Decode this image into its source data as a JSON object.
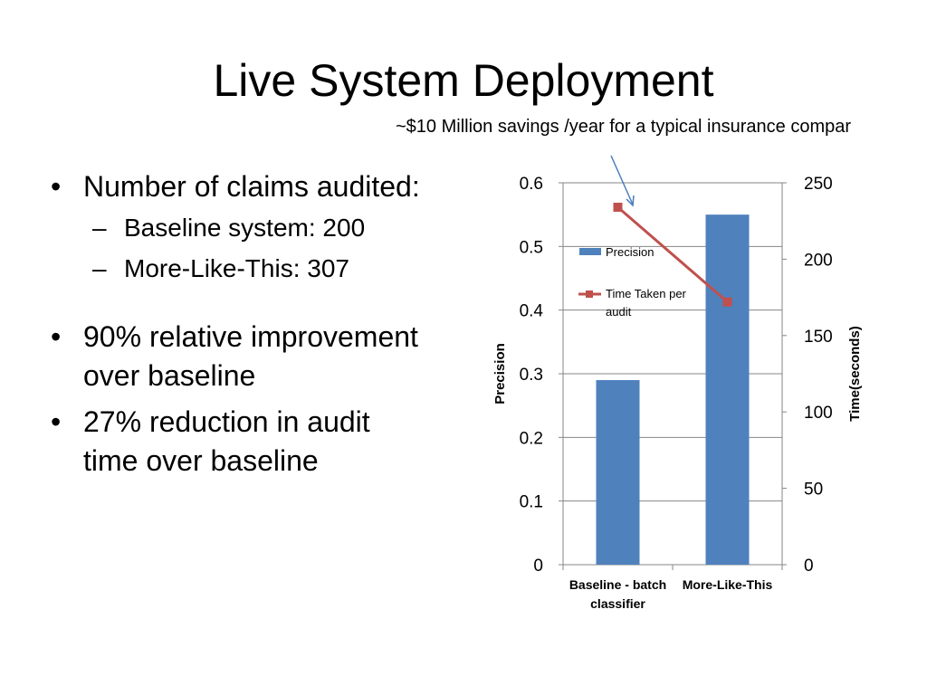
{
  "slide": {
    "title": "Live System Deployment",
    "callout": "~$10 Million savings /year for a typical insurance compar"
  },
  "bullets": {
    "b1": "Number of claims audited:",
    "b1_sub1": "Baseline system: 200",
    "b1_sub2": "More-Like-This: 307",
    "b2": "90% relative improvement over baseline",
    "b3": "27% reduction in audit time over baseline"
  },
  "colors": {
    "bar": "#4f81bd",
    "line": "#c0504d",
    "grid": "#868686",
    "arrow": "#4a7ebb"
  },
  "chart_data": {
    "type": "bar",
    "categories": [
      [
        "Baseline - batch",
        "classifier"
      ],
      [
        "More-Like-This"
      ]
    ],
    "series": [
      {
        "name": "Precision",
        "type": "bar",
        "axis": "left",
        "values": [
          0.29,
          0.55
        ]
      },
      {
        "name": "Time Taken per audit",
        "type": "line",
        "axis": "right",
        "marker": "square",
        "values": [
          234,
          172
        ]
      }
    ],
    "legend": [
      [
        "Precision"
      ],
      [
        "Time Taken per",
        "audit"
      ]
    ],
    "ylabel_left": "Precision",
    "ylabel_right": "Time(seconds)",
    "ylim_left": [
      0,
      0.6
    ],
    "ylim_right": [
      0,
      250
    ],
    "yticks_left": [
      0,
      0.1,
      0.2,
      0.3,
      0.4,
      0.5,
      0.6
    ],
    "yticks_right": [
      0,
      50,
      100,
      150,
      200,
      250
    ],
    "ytick_labels_left": [
      "0",
      "0.1",
      "0.2",
      "0.3",
      "0.4",
      "0.5",
      "0.6"
    ],
    "ytick_labels_right": [
      "0",
      "50",
      "100",
      "150",
      "200",
      "250"
    ],
    "grid": true,
    "legend_position": "inside-left"
  }
}
